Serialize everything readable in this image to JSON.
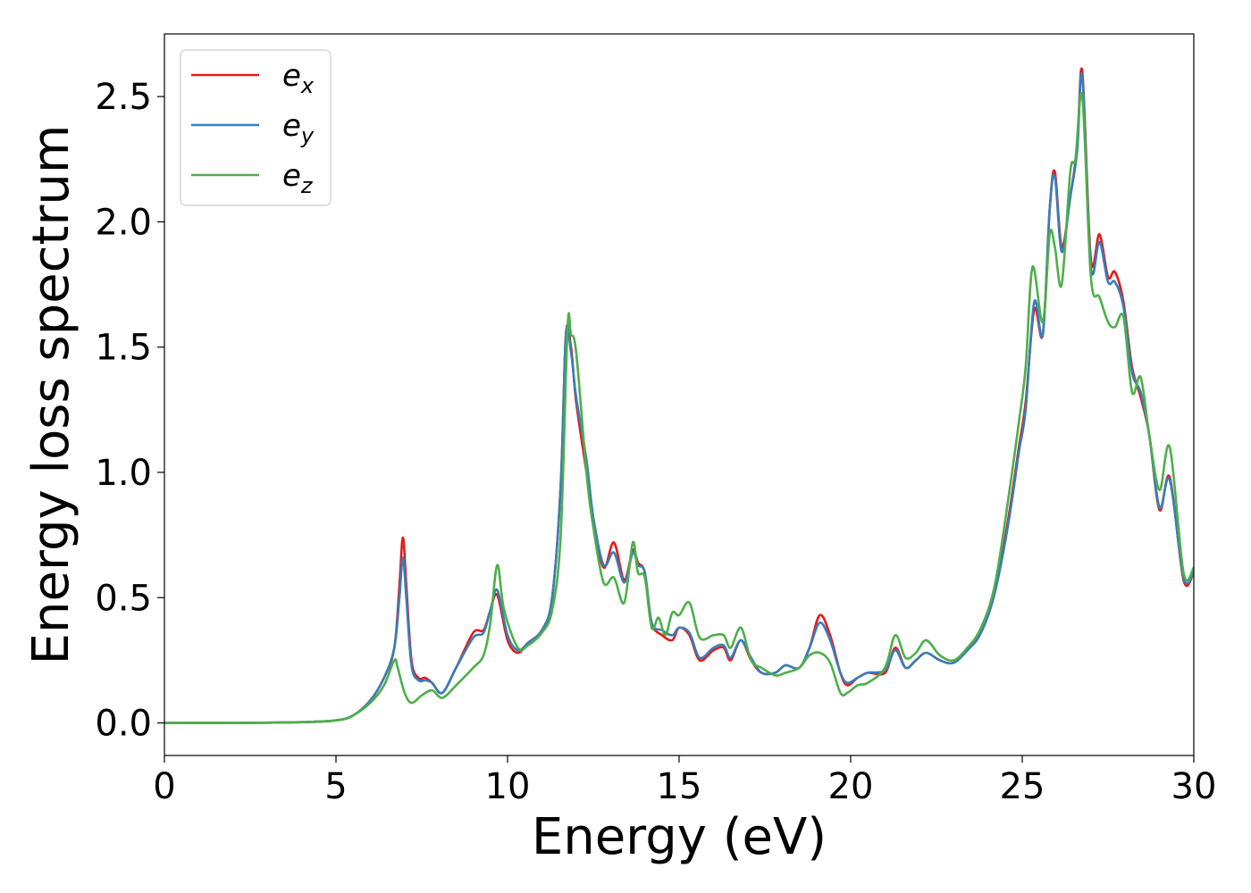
{
  "chart_data": {
    "type": "line",
    "title": "",
    "xlabel": "Energy (eV)",
    "ylabel": "Energy loss spectrum",
    "xlim": [
      0,
      30
    ],
    "ylim": [
      -0.13,
      2.75
    ],
    "xticks": [
      0,
      5,
      10,
      15,
      20,
      25,
      30
    ],
    "yticks": [
      0.0,
      0.5,
      1.0,
      1.5,
      2.0,
      2.5
    ],
    "xtick_labels": [
      "0",
      "5",
      "10",
      "15",
      "20",
      "25",
      "30"
    ],
    "ytick_labels": [
      "0.0",
      "0.5",
      "1.0",
      "1.5",
      "2.0",
      "2.5"
    ],
    "grid": false,
    "legend": {
      "placement": "top-left",
      "entries": [
        {
          "base": "e",
          "sub": "x",
          "color": "#e41a1c"
        },
        {
          "base": "e",
          "sub": "y",
          "color": "#377eb8"
        },
        {
          "base": "e",
          "sub": "z",
          "color": "#4daf4a"
        }
      ]
    },
    "series": [
      {
        "color": "#e41a1c",
        "points": [
          [
            0,
            0
          ],
          [
            2,
            0
          ],
          [
            4,
            0.003
          ],
          [
            5,
            0.01
          ],
          [
            5.5,
            0.03
          ],
          [
            6,
            0.09
          ],
          [
            6.4,
            0.18
          ],
          [
            6.7,
            0.3
          ],
          [
            6.85,
            0.55
          ],
          [
            6.95,
            0.74
          ],
          [
            7.05,
            0.55
          ],
          [
            7.2,
            0.25
          ],
          [
            7.4,
            0.18
          ],
          [
            7.6,
            0.18
          ],
          [
            7.8,
            0.16
          ],
          [
            8.1,
            0.12
          ],
          [
            8.5,
            0.22
          ],
          [
            9,
            0.36
          ],
          [
            9.3,
            0.37
          ],
          [
            9.5,
            0.45
          ],
          [
            9.7,
            0.51
          ],
          [
            10,
            0.33
          ],
          [
            10.3,
            0.28
          ],
          [
            10.6,
            0.32
          ],
          [
            11,
            0.37
          ],
          [
            11.3,
            0.5
          ],
          [
            11.55,
            0.95
          ],
          [
            11.7,
            1.55
          ],
          [
            11.85,
            1.5
          ],
          [
            12.0,
            1.28
          ],
          [
            12.3,
            1.0
          ],
          [
            12.5,
            0.8
          ],
          [
            12.8,
            0.62
          ],
          [
            13.1,
            0.72
          ],
          [
            13.4,
            0.57
          ],
          [
            13.65,
            0.69
          ],
          [
            13.8,
            0.64
          ],
          [
            14.0,
            0.6
          ],
          [
            14.2,
            0.4
          ],
          [
            14.5,
            0.35
          ],
          [
            14.8,
            0.33
          ],
          [
            15.0,
            0.38
          ],
          [
            15.3,
            0.35
          ],
          [
            15.6,
            0.25
          ],
          [
            16.0,
            0.29
          ],
          [
            16.3,
            0.3
          ],
          [
            16.5,
            0.25
          ],
          [
            16.8,
            0.33
          ],
          [
            17.1,
            0.25
          ],
          [
            17.4,
            0.2
          ],
          [
            17.8,
            0.2
          ],
          [
            18.1,
            0.23
          ],
          [
            18.5,
            0.22
          ],
          [
            18.8,
            0.3
          ],
          [
            19.1,
            0.43
          ],
          [
            19.4,
            0.35
          ],
          [
            19.7,
            0.2
          ],
          [
            19.9,
            0.15
          ],
          [
            20.2,
            0.18
          ],
          [
            20.5,
            0.2
          ],
          [
            21.0,
            0.2
          ],
          [
            21.3,
            0.3
          ],
          [
            21.6,
            0.22
          ],
          [
            21.9,
            0.25
          ],
          [
            22.2,
            0.28
          ],
          [
            22.6,
            0.25
          ],
          [
            23,
            0.24
          ],
          [
            23.4,
            0.29
          ],
          [
            23.8,
            0.36
          ],
          [
            24.2,
            0.52
          ],
          [
            24.6,
            0.82
          ],
          [
            24.9,
            1.1
          ],
          [
            25.1,
            1.28
          ],
          [
            25.35,
            1.65
          ],
          [
            25.6,
            1.55
          ],
          [
            25.8,
            2.05
          ],
          [
            25.95,
            2.2
          ],
          [
            26.15,
            1.9
          ],
          [
            26.4,
            2.1
          ],
          [
            26.6,
            2.3
          ],
          [
            26.75,
            2.6
          ],
          [
            27.0,
            1.85
          ],
          [
            27.25,
            1.95
          ],
          [
            27.5,
            1.78
          ],
          [
            27.7,
            1.8
          ],
          [
            27.95,
            1.68
          ],
          [
            28.2,
            1.42
          ],
          [
            28.45,
            1.3
          ],
          [
            28.7,
            1.15
          ],
          [
            29.0,
            0.85
          ],
          [
            29.3,
            0.98
          ],
          [
            29.7,
            0.57
          ],
          [
            30,
            0.6
          ]
        ]
      },
      {
        "color": "#377eb8",
        "points": [
          [
            0,
            0
          ],
          [
            2,
            0
          ],
          [
            4,
            0.003
          ],
          [
            5,
            0.01
          ],
          [
            5.5,
            0.03
          ],
          [
            6,
            0.09
          ],
          [
            6.4,
            0.18
          ],
          [
            6.7,
            0.3
          ],
          [
            6.85,
            0.5
          ],
          [
            6.95,
            0.66
          ],
          [
            7.05,
            0.5
          ],
          [
            7.2,
            0.23
          ],
          [
            7.4,
            0.17
          ],
          [
            7.6,
            0.17
          ],
          [
            7.8,
            0.16
          ],
          [
            8.1,
            0.12
          ],
          [
            8.5,
            0.22
          ],
          [
            9,
            0.34
          ],
          [
            9.3,
            0.36
          ],
          [
            9.5,
            0.45
          ],
          [
            9.7,
            0.53
          ],
          [
            10,
            0.35
          ],
          [
            10.3,
            0.29
          ],
          [
            10.6,
            0.32
          ],
          [
            11,
            0.37
          ],
          [
            11.3,
            0.5
          ],
          [
            11.55,
            0.95
          ],
          [
            11.7,
            1.55
          ],
          [
            11.85,
            1.48
          ],
          [
            12.0,
            1.3
          ],
          [
            12.3,
            1.05
          ],
          [
            12.5,
            0.82
          ],
          [
            12.8,
            0.63
          ],
          [
            13.1,
            0.68
          ],
          [
            13.4,
            0.56
          ],
          [
            13.65,
            0.68
          ],
          [
            13.8,
            0.63
          ],
          [
            14.0,
            0.6
          ],
          [
            14.2,
            0.4
          ],
          [
            14.5,
            0.37
          ],
          [
            14.8,
            0.35
          ],
          [
            15.0,
            0.38
          ],
          [
            15.3,
            0.36
          ],
          [
            15.6,
            0.26
          ],
          [
            16.0,
            0.3
          ],
          [
            16.3,
            0.31
          ],
          [
            16.5,
            0.26
          ],
          [
            16.8,
            0.33
          ],
          [
            17.1,
            0.26
          ],
          [
            17.4,
            0.2
          ],
          [
            17.8,
            0.2
          ],
          [
            18.1,
            0.23
          ],
          [
            18.5,
            0.22
          ],
          [
            18.8,
            0.3
          ],
          [
            19.1,
            0.4
          ],
          [
            19.4,
            0.33
          ],
          [
            19.7,
            0.2
          ],
          [
            19.9,
            0.16
          ],
          [
            20.2,
            0.18
          ],
          [
            20.5,
            0.2
          ],
          [
            21.0,
            0.21
          ],
          [
            21.3,
            0.29
          ],
          [
            21.6,
            0.22
          ],
          [
            21.9,
            0.25
          ],
          [
            22.2,
            0.28
          ],
          [
            22.6,
            0.25
          ],
          [
            23,
            0.24
          ],
          [
            23.4,
            0.29
          ],
          [
            23.8,
            0.36
          ],
          [
            24.2,
            0.52
          ],
          [
            24.6,
            0.8
          ],
          [
            24.9,
            1.08
          ],
          [
            25.1,
            1.25
          ],
          [
            25.35,
            1.68
          ],
          [
            25.6,
            1.55
          ],
          [
            25.8,
            2.05
          ],
          [
            25.95,
            2.18
          ],
          [
            26.15,
            1.88
          ],
          [
            26.4,
            2.1
          ],
          [
            26.6,
            2.28
          ],
          [
            26.75,
            2.58
          ],
          [
            27.0,
            1.82
          ],
          [
            27.25,
            1.92
          ],
          [
            27.5,
            1.76
          ],
          [
            27.7,
            1.76
          ],
          [
            27.95,
            1.66
          ],
          [
            28.2,
            1.4
          ],
          [
            28.45,
            1.32
          ],
          [
            28.7,
            1.15
          ],
          [
            29.0,
            0.86
          ],
          [
            29.3,
            0.97
          ],
          [
            29.7,
            0.58
          ],
          [
            30,
            0.6
          ]
        ]
      },
      {
        "color": "#4daf4a",
        "points": [
          [
            0,
            0
          ],
          [
            2,
            0
          ],
          [
            4,
            0.003
          ],
          [
            5,
            0.01
          ],
          [
            5.5,
            0.03
          ],
          [
            6,
            0.08
          ],
          [
            6.4,
            0.15
          ],
          [
            6.7,
            0.25
          ],
          [
            6.8,
            0.22
          ],
          [
            7.0,
            0.12
          ],
          [
            7.2,
            0.08
          ],
          [
            7.5,
            0.11
          ],
          [
            7.8,
            0.13
          ],
          [
            8.1,
            0.1
          ],
          [
            8.5,
            0.15
          ],
          [
            9,
            0.22
          ],
          [
            9.3,
            0.27
          ],
          [
            9.5,
            0.4
          ],
          [
            9.7,
            0.63
          ],
          [
            9.9,
            0.45
          ],
          [
            10.3,
            0.3
          ],
          [
            10.6,
            0.31
          ],
          [
            11,
            0.36
          ],
          [
            11.3,
            0.45
          ],
          [
            11.55,
            0.75
          ],
          [
            11.75,
            1.58
          ],
          [
            11.85,
            1.55
          ],
          [
            12.0,
            1.48
          ],
          [
            12.3,
            1.0
          ],
          [
            12.5,
            0.78
          ],
          [
            12.8,
            0.56
          ],
          [
            13.1,
            0.58
          ],
          [
            13.4,
            0.48
          ],
          [
            13.65,
            0.72
          ],
          [
            13.8,
            0.6
          ],
          [
            14.0,
            0.58
          ],
          [
            14.2,
            0.38
          ],
          [
            14.4,
            0.42
          ],
          [
            14.6,
            0.35
          ],
          [
            14.8,
            0.44
          ],
          [
            15.0,
            0.43
          ],
          [
            15.3,
            0.48
          ],
          [
            15.6,
            0.34
          ],
          [
            16.0,
            0.35
          ],
          [
            16.3,
            0.35
          ],
          [
            16.5,
            0.3
          ],
          [
            16.8,
            0.38
          ],
          [
            17.1,
            0.25
          ],
          [
            17.4,
            0.22
          ],
          [
            17.8,
            0.19
          ],
          [
            18.1,
            0.2
          ],
          [
            18.5,
            0.22
          ],
          [
            18.8,
            0.27
          ],
          [
            19.1,
            0.28
          ],
          [
            19.4,
            0.24
          ],
          [
            19.7,
            0.12
          ],
          [
            19.9,
            0.12
          ],
          [
            20.2,
            0.15
          ],
          [
            20.5,
            0.16
          ],
          [
            21.0,
            0.22
          ],
          [
            21.3,
            0.35
          ],
          [
            21.6,
            0.26
          ],
          [
            21.9,
            0.28
          ],
          [
            22.2,
            0.33
          ],
          [
            22.6,
            0.27
          ],
          [
            23,
            0.25
          ],
          [
            23.4,
            0.3
          ],
          [
            23.8,
            0.38
          ],
          [
            24.2,
            0.55
          ],
          [
            24.6,
            0.9
          ],
          [
            24.9,
            1.2
          ],
          [
            25.1,
            1.42
          ],
          [
            25.3,
            1.82
          ],
          [
            25.6,
            1.6
          ],
          [
            25.8,
            1.95
          ],
          [
            25.95,
            1.9
          ],
          [
            26.15,
            1.75
          ],
          [
            26.4,
            2.2
          ],
          [
            26.55,
            2.25
          ],
          [
            26.75,
            2.5
          ],
          [
            27.0,
            1.78
          ],
          [
            27.25,
            1.7
          ],
          [
            27.5,
            1.6
          ],
          [
            27.7,
            1.58
          ],
          [
            27.95,
            1.62
          ],
          [
            28.2,
            1.32
          ],
          [
            28.45,
            1.38
          ],
          [
            28.7,
            1.15
          ],
          [
            29.0,
            0.93
          ],
          [
            29.3,
            1.1
          ],
          [
            29.7,
            0.6
          ],
          [
            30,
            0.62
          ]
        ]
      }
    ]
  }
}
